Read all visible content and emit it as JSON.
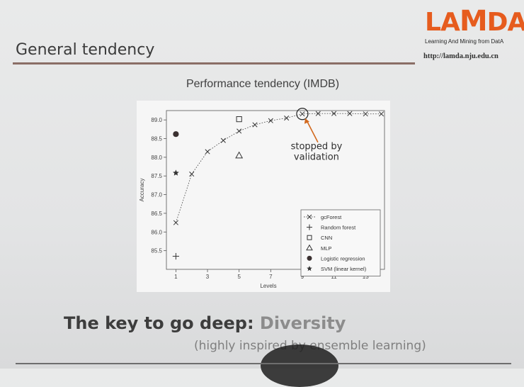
{
  "slide": {
    "title": "General tendency",
    "key_message_prefix": "The key to go deep: ",
    "key_message_highlight": "Diversity",
    "sub_message": "(highly inspired by ensemble learning)"
  },
  "logo": {
    "letters": [
      "LA",
      "M",
      "DA"
    ],
    "tagline": "Learning And Mining from DatA",
    "url": "http://lamda.nju.edu.cn"
  },
  "colors": {
    "logo_orange": "#e65c1e",
    "rule": "#8a6e66"
  },
  "chart_data": {
    "type": "scatter",
    "title": "Performance tendency (IMDB)",
    "xlabel": "Levels",
    "ylabel": "Accuracy",
    "xlim": [
      0.4,
      14.2
    ],
    "ylim": [
      85.0,
      89.25
    ],
    "x_ticks": [
      1,
      3,
      5,
      7,
      9,
      11,
      13
    ],
    "y_ticks": [
      85.5,
      86.0,
      86.5,
      87.0,
      87.5,
      88.0,
      88.5,
      89.0
    ],
    "y_tick_labels": [
      "85.5",
      "86.0",
      "86.5",
      "87.0",
      "87.5",
      "88.0",
      "88.5",
      "89.0"
    ],
    "series": [
      {
        "name": "gcForest",
        "marker": "x",
        "line": "dotted",
        "x": [
          1,
          2,
          3,
          4,
          5,
          6,
          7,
          8,
          9,
          10,
          11,
          12,
          13,
          14
        ],
        "y": [
          86.25,
          87.55,
          88.15,
          88.45,
          88.7,
          88.87,
          88.98,
          89.05,
          89.16,
          89.17,
          89.17,
          89.17,
          89.16,
          89.16
        ]
      },
      {
        "name": "Random forest",
        "marker": "plus",
        "x": [
          1
        ],
        "y": [
          85.35
        ]
      },
      {
        "name": "CNN",
        "marker": "square",
        "x": [
          5
        ],
        "y": [
          89.02
        ]
      },
      {
        "name": "MLP",
        "marker": "triangle",
        "x": [
          5
        ],
        "y": [
          88.05
        ]
      },
      {
        "name": "Logistic regression",
        "marker": "circle",
        "x": [
          1
        ],
        "y": [
          88.62
        ]
      },
      {
        "name": "SVM (linear kernel)",
        "marker": "star",
        "x": [
          1
        ],
        "y": [
          87.58
        ]
      }
    ],
    "annotation": {
      "text": [
        "stopped by",
        "validation"
      ],
      "x": 9,
      "y": 89.16
    },
    "legend_position": "bottom-right",
    "grid": false
  }
}
